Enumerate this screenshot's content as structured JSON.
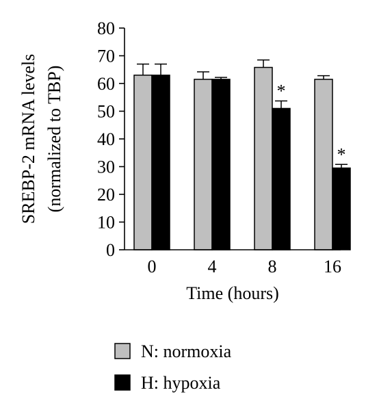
{
  "chart_data": {
    "type": "bar",
    "ylabel_line1": "SREBP-2 mRNA levels",
    "ylabel_line2": "(normalized to TBP)",
    "xlabel": "Time (hours)",
    "categories": [
      "0",
      "4",
      "8",
      "16"
    ],
    "ylim": [
      0,
      80
    ],
    "yticks": [
      "0",
      "10",
      "20",
      "30",
      "40",
      "50",
      "60",
      "70",
      "80"
    ],
    "grid": false,
    "legend_position": "bottom-left",
    "series": [
      {
        "name": "N: normoxia",
        "color": "#bfbfbf",
        "values": [
          63,
          61.5,
          65.8,
          61.5
        ],
        "errors": [
          4,
          2.7,
          2.7,
          1.3
        ],
        "significance": [
          "",
          "",
          "",
          ""
        ]
      },
      {
        "name": "H: hypoxia",
        "color": "#000000",
        "values": [
          63,
          61.5,
          51,
          29.5
        ],
        "errors": [
          4,
          0.7,
          2.7,
          1.3
        ],
        "significance": [
          "",
          "",
          "*",
          "*"
        ]
      }
    ]
  }
}
